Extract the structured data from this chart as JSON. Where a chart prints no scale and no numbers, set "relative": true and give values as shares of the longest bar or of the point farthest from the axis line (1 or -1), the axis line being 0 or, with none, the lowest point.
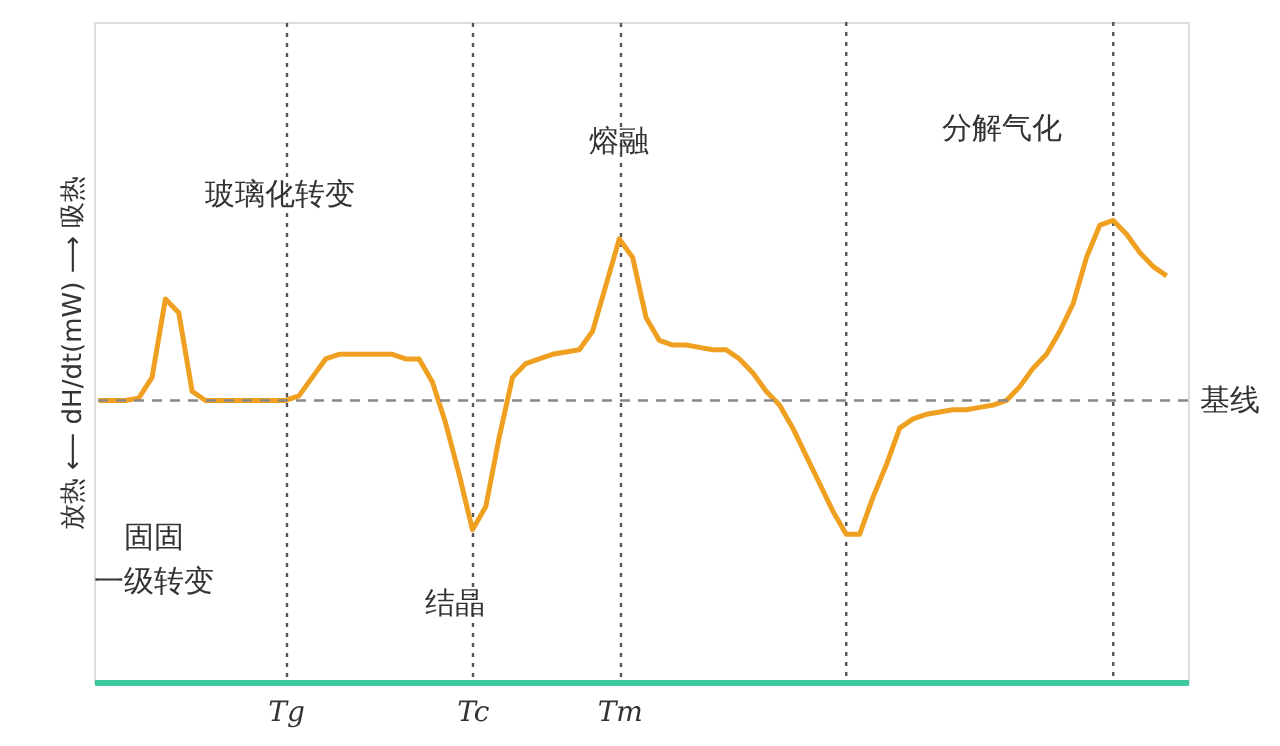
{
  "chart_data": {
    "type": "line",
    "relative": true,
    "ylabel": "放热 ⟵ dH/dt(mW) ⟶ 吸热",
    "categories": [
      null,
      null,
      null,
      null,
      null,
      null,
      null,
      null,
      null,
      null,
      null,
      null,
      null,
      null,
      "Tg",
      null,
      null,
      null,
      null,
      null,
      null,
      null,
      null,
      null,
      null,
      null,
      null,
      null,
      "Tc",
      null,
      null,
      null,
      null,
      null,
      null,
      null,
      null,
      null,
      null,
      "Tm",
      null,
      null,
      null,
      null,
      null,
      null,
      null,
      null,
      null,
      null,
      null,
      null,
      null,
      null,
      null,
      null,
      null,
      null,
      null,
      null,
      null,
      null,
      null,
      null,
      null,
      null,
      null,
      null,
      null,
      null,
      null,
      null,
      null,
      null,
      null,
      null,
      null,
      null,
      null,
      null,
      null
    ],
    "series": [
      {
        "color": "#f0a020",
        "values": [
          0.61,
          0.61,
          0.61,
          0.615,
          0.66,
          0.83,
          0.8,
          0.63,
          0.61,
          0.61,
          0.61,
          0.61,
          0.61,
          0.61,
          0.61,
          0.62,
          0.66,
          0.7,
          0.71,
          0.71,
          0.71,
          0.71,
          0.71,
          0.7,
          0.7,
          0.65,
          0.56,
          0.45,
          0.33,
          0.38,
          0.53,
          0.66,
          0.69,
          0.7,
          0.71,
          0.715,
          0.72,
          0.76,
          0.86,
          0.96,
          0.92,
          0.79,
          0.74,
          0.73,
          0.73,
          0.725,
          0.72,
          0.72,
          0.7,
          0.67,
          0.63,
          0.6,
          0.55,
          0.49,
          0.43,
          0.37,
          0.32,
          0.32,
          0.4,
          0.47,
          0.55,
          0.57,
          0.58,
          0.585,
          0.59,
          0.59,
          0.595,
          0.6,
          0.61,
          0.64,
          0.68,
          0.71,
          0.76,
          0.82,
          0.92,
          0.99,
          1,
          0.97,
          0.93,
          0.9,
          0.88
        ]
      }
    ],
    "ref_lines": [
      {
        "axis": "y",
        "value": 0.61,
        "label": "基线",
        "color": "#888888",
        "line_style": "dashed"
      }
    ],
    "annotations": [
      "玻璃化转变",
      "熔融",
      "分解气化",
      "固固一级转变",
      "结晶"
    ],
    "grid": "x",
    "line_style": "solid",
    "marker": "none"
  }
}
